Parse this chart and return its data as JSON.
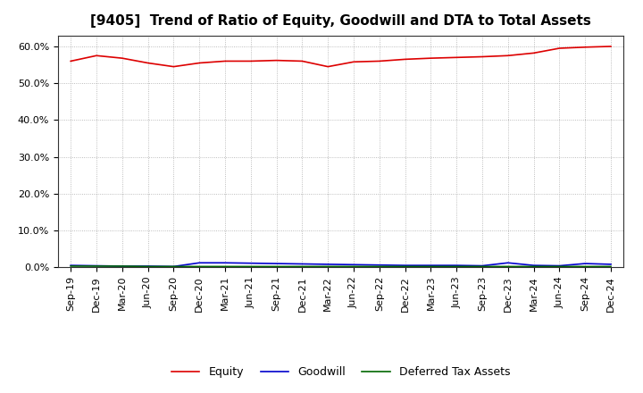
{
  "title": "[9405]  Trend of Ratio of Equity, Goodwill and DTA to Total Assets",
  "x_labels": [
    "Sep-19",
    "Dec-19",
    "Mar-20",
    "Jun-20",
    "Sep-20",
    "Dec-20",
    "Mar-21",
    "Jun-21",
    "Sep-21",
    "Dec-21",
    "Mar-22",
    "Jun-22",
    "Sep-22",
    "Dec-22",
    "Mar-23",
    "Jun-23",
    "Sep-23",
    "Dec-23",
    "Mar-24",
    "Jun-24",
    "Sep-24",
    "Dec-24"
  ],
  "equity": [
    56.0,
    57.5,
    56.8,
    55.5,
    54.5,
    55.5,
    56.0,
    56.0,
    56.2,
    56.0,
    54.5,
    55.8,
    56.0,
    56.5,
    56.8,
    57.0,
    57.2,
    57.5,
    58.2,
    59.5,
    59.8,
    60.0
  ],
  "goodwill": [
    0.5,
    0.4,
    0.3,
    0.3,
    0.2,
    1.2,
    1.2,
    1.1,
    1.0,
    0.9,
    0.8,
    0.7,
    0.6,
    0.5,
    0.5,
    0.5,
    0.4,
    1.2,
    0.5,
    0.4,
    1.0,
    0.8
  ],
  "dta": [
    0.3,
    0.3,
    0.3,
    0.2,
    0.2,
    0.2,
    0.2,
    0.2,
    0.2,
    0.2,
    0.2,
    0.2,
    0.2,
    0.2,
    0.2,
    0.2,
    0.2,
    0.2,
    0.2,
    0.2,
    0.2,
    0.2
  ],
  "equity_color": "#dd0000",
  "goodwill_color": "#0000cc",
  "dta_color": "#006600",
  "bg_color": "#ffffff",
  "plot_bg_color": "#ffffff",
  "grid_color": "#aaaaaa",
  "ylim": [
    0.0,
    63.0
  ],
  "yticks": [
    0.0,
    10.0,
    20.0,
    30.0,
    40.0,
    50.0,
    60.0
  ],
  "legend_labels": [
    "Equity",
    "Goodwill",
    "Deferred Tax Assets"
  ],
  "title_fontsize": 11,
  "axis_fontsize": 8,
  "legend_fontsize": 9
}
